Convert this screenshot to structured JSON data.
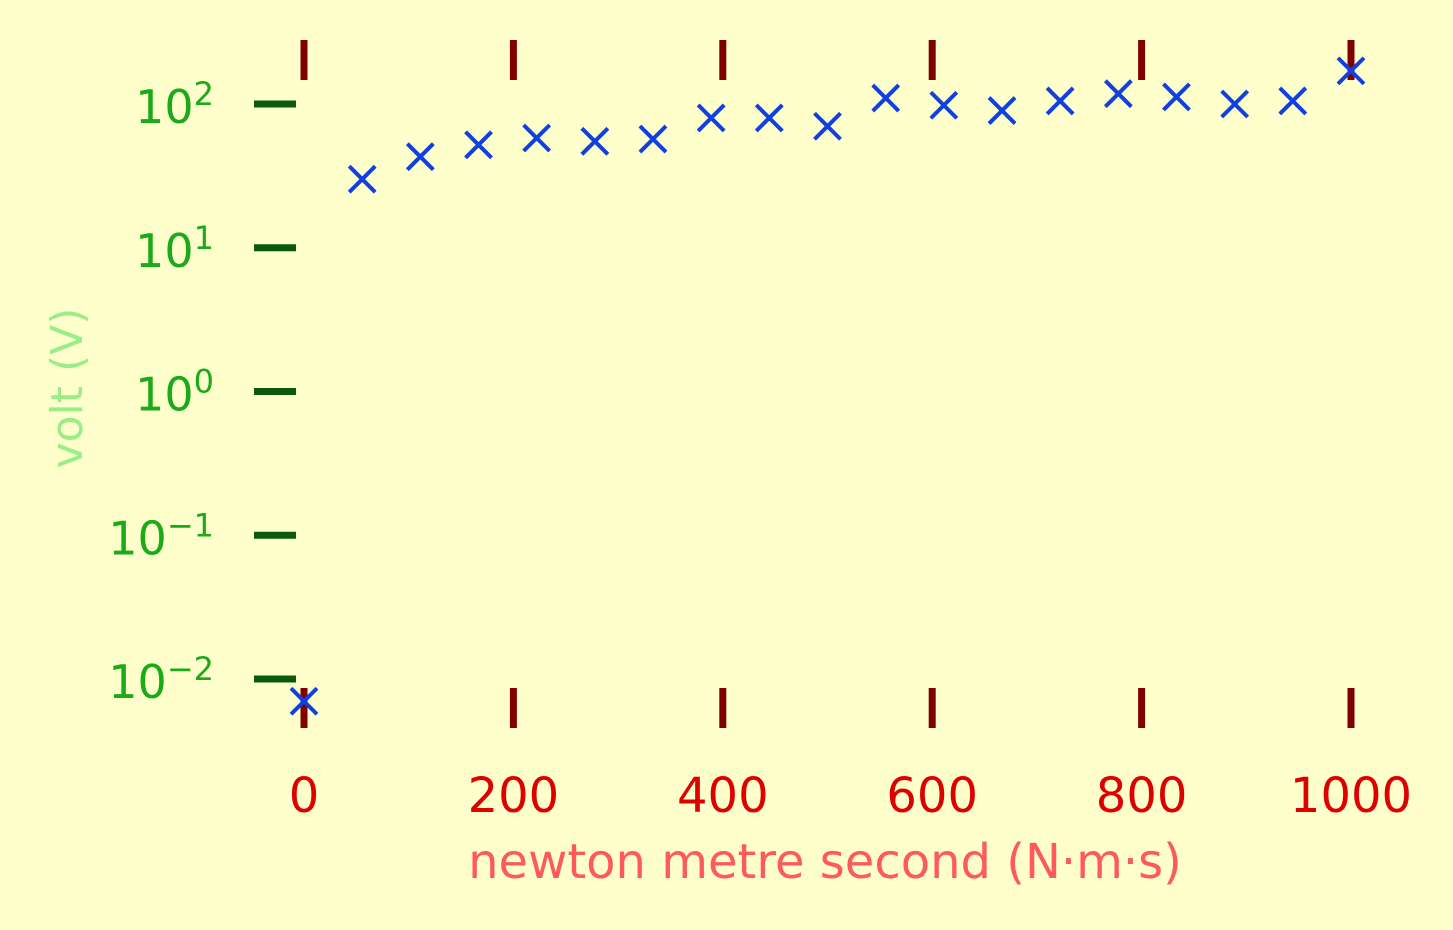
{
  "chart_data": {
    "type": "scatter",
    "title": "",
    "xlabel": "newton metre second (N·m·s)",
    "ylabel": "volt (V)",
    "x_scale": "linear",
    "y_scale": "log",
    "xlim": [
      0,
      1000
    ],
    "ylim_exponent": [
      -2,
      2
    ],
    "xticks": [
      0,
      200,
      400,
      600,
      800,
      1000
    ],
    "xtick_labels": [
      "0",
      "200",
      "400",
      "600",
      "800",
      "1000"
    ],
    "yticks_exponent": [
      -2,
      -1,
      0,
      1,
      2
    ],
    "ytick_labels": [
      {
        "base": "10",
        "exp": "−2"
      },
      {
        "base": "10",
        "exp": "−1"
      },
      {
        "base": "10",
        "exp": "0"
      },
      {
        "base": "10",
        "exp": "1"
      },
      {
        "base": "10",
        "exp": "2"
      }
    ],
    "grid": false,
    "marker": "x",
    "colors": {
      "background": "#ffffcc",
      "marker": "#1040e0",
      "x_tick_marks": "#800000",
      "x_tick_labels": "#dd0000",
      "x_axis_label": "#ff5a5a",
      "y_tick_marks": "#0a5a0a",
      "y_tick_labels": "#1aaa1a",
      "y_axis_label": "#99ee88"
    },
    "series": [
      {
        "x": [
          0,
          55.6,
          111.1,
          166.7,
          222.2,
          277.8,
          333.3,
          388.9,
          444.4,
          500,
          555.6,
          611.1,
          666.7,
          722.2,
          777.8,
          833.3,
          888.9,
          944.4,
          1000
        ],
        "y": [
          0.007,
          30,
          43,
          52,
          58,
          55,
          57,
          80,
          80,
          70,
          110,
          98,
          90,
          105,
          118,
          112,
          100,
          105,
          170
        ]
      }
    ]
  }
}
